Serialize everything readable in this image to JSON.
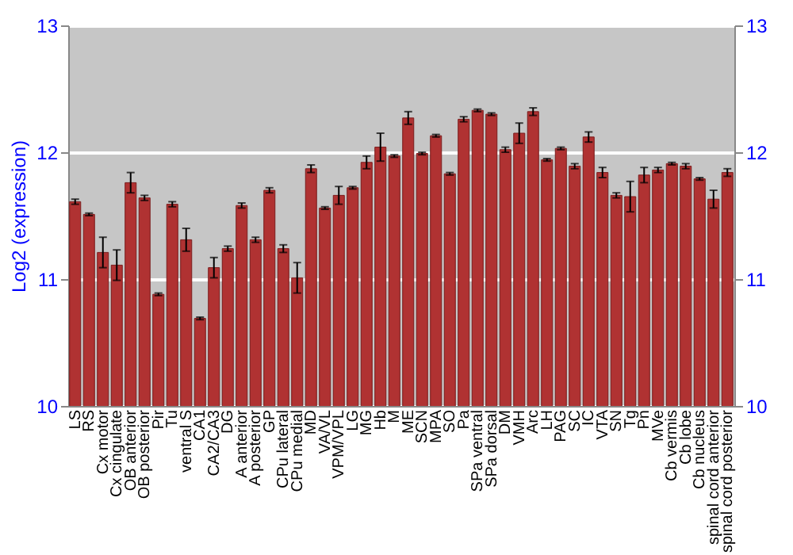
{
  "chart_data": {
    "type": "bar",
    "ylabel": "Log2 (expression)",
    "categories": [
      "LS",
      "RS",
      "Cx motor",
      "Cx cingulate",
      "OB anterior",
      "OB posterior",
      "Pir",
      "Tu",
      "ventral S",
      "CA1",
      "CA2/CA3",
      "DG",
      "A anterior",
      "A posterior",
      "GP",
      "CPu lateral",
      "CPu medial",
      "MD",
      "VA/VL",
      "VPM/VPL",
      "LG",
      "MG",
      "Hb",
      "M",
      "ME",
      "SCN",
      "MPA",
      "SO",
      "Pa",
      "SPa ventral",
      "SPa dorsal",
      "DM",
      "VMH",
      "Arc",
      "LH",
      "PAG",
      "SC",
      "IC",
      "VTA",
      "SN",
      "Tg",
      "Pn",
      "MVe",
      "Cb vermis",
      "Cb lobe",
      "Cb nucleus",
      "spinal cord anterior",
      "spinal cord posterior"
    ],
    "values": [
      11.61,
      11.51,
      11.21,
      11.11,
      11.76,
      11.64,
      10.88,
      11.59,
      11.31,
      10.69,
      11.09,
      11.24,
      11.58,
      11.31,
      11.7,
      11.24,
      11.01,
      11.87,
      11.56,
      11.66,
      11.72,
      11.92,
      12.04,
      11.97,
      12.27,
      11.99,
      12.13,
      11.83,
      12.26,
      12.33,
      12.3,
      12.02,
      12.15,
      12.32,
      11.94,
      12.03,
      11.89,
      12.12,
      11.84,
      11.66,
      11.65,
      11.82,
      11.86,
      11.91,
      11.89,
      11.79,
      11.63,
      11.84
    ],
    "errors": [
      0.02,
      0.01,
      0.12,
      0.12,
      0.08,
      0.02,
      0.01,
      0.02,
      0.09,
      0.01,
      0.08,
      0.02,
      0.02,
      0.02,
      0.02,
      0.03,
      0.12,
      0.03,
      0.01,
      0.07,
      0.01,
      0.05,
      0.11,
      0.01,
      0.05,
      0.01,
      0.01,
      0.01,
      0.02,
      0.01,
      0.01,
      0.02,
      0.08,
      0.03,
      0.01,
      0.01,
      0.02,
      0.04,
      0.04,
      0.02,
      0.12,
      0.06,
      0.02,
      0.01,
      0.02,
      0.01,
      0.07,
      0.03
    ],
    "color": "#b03232",
    "ylim": [
      10,
      13
    ],
    "yticks": [
      10,
      11,
      12,
      13
    ],
    "y2lim": [
      10,
      13
    ],
    "y2ticks": [
      10,
      11,
      12,
      13
    ],
    "grid": "y"
  }
}
